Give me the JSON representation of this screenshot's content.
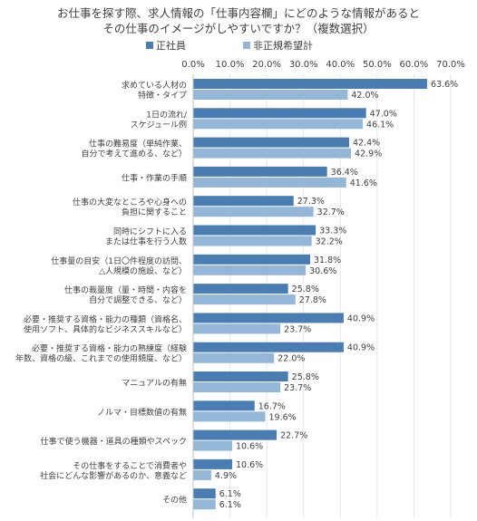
{
  "colors": {
    "series1": "#4a7eb2",
    "series2": "#94b7d8"
  },
  "chart_data": {
    "type": "bar",
    "orientation": "horizontal",
    "title_lines": [
      "お仕事を探す際、求人情報の「仕事内容欄」にどのような情報があると",
      "その仕事のイメージがしやすいですか？（複数選択）"
    ],
    "xlim": [
      0,
      70
    ],
    "xticks": [
      "0.0%",
      "10.0%",
      "20.0%",
      "30.0%",
      "40.0%",
      "50.0%",
      "60.0%",
      "70.0%"
    ],
    "grid": true,
    "legend_position": "top",
    "categories": [
      [
        "求めている人材の",
        "特徴・タイプ"
      ],
      [
        "1日の流れ/",
        "スケジュール例"
      ],
      [
        "仕事の難易度（単純作業、",
        "自分で考えて進める、など）"
      ],
      [
        "仕事・作業の手順"
      ],
      [
        "仕事の大変なところや心身への",
        "負担に関すること"
      ],
      [
        "同時にシフトに入る",
        "または仕事を行う人数"
      ],
      [
        "仕事量の目安（1日〇件程度の訪問、",
        "△人規模の施設、など）"
      ],
      [
        "仕事の裁量度（量・時間・内容を",
        "自分で調整できる、など）"
      ],
      [
        "必要・推奨する資格・能力の種類（資格名、",
        "使用ソフト、具体的なビジネススキルなど）"
      ],
      [
        "必要・推奨する資格・能力の熟練度（経験",
        "年数、資格の級、これまでの使用頻度、など）"
      ],
      [
        "マニュアルの有無"
      ],
      [
        "ノルマ・目標数値の有無"
      ],
      [
        "仕事で使う機器・道具の種類やスペック"
      ],
      [
        "その仕事をすることで消費者や",
        "社会にどんな影響があるのか、意義など"
      ],
      [
        "その他"
      ]
    ],
    "series": [
      {
        "name": "正社員",
        "values": [
          63.6,
          47.0,
          42.4,
          36.4,
          27.3,
          33.3,
          31.8,
          25.8,
          40.9,
          40.9,
          25.8,
          16.7,
          22.7,
          10.6,
          6.1
        ],
        "labels": [
          "63.6%",
          "47.0%",
          "42.4%",
          "36.4%",
          "27.3%",
          "33.3%",
          "31.8%",
          "25.8%",
          "40.9%",
          "40.9%",
          "25.8%",
          "16.7%",
          "22.7%",
          "10.6%",
          "6.1%"
        ]
      },
      {
        "name": "非正規希望計",
        "values": [
          42.0,
          46.1,
          42.9,
          41.6,
          32.7,
          32.2,
          30.6,
          27.8,
          23.7,
          22.0,
          23.7,
          19.6,
          10.6,
          4.9,
          6.1
        ],
        "labels": [
          "42.0%",
          "46.1%",
          "42.9%",
          "41.6%",
          "32.7%",
          "32.2%",
          "30.6%",
          "27.8%",
          "23.7%",
          "22.0%",
          "23.7%",
          "19.6%",
          "10.6%",
          "4.9%",
          "6.1%"
        ]
      }
    ]
  }
}
